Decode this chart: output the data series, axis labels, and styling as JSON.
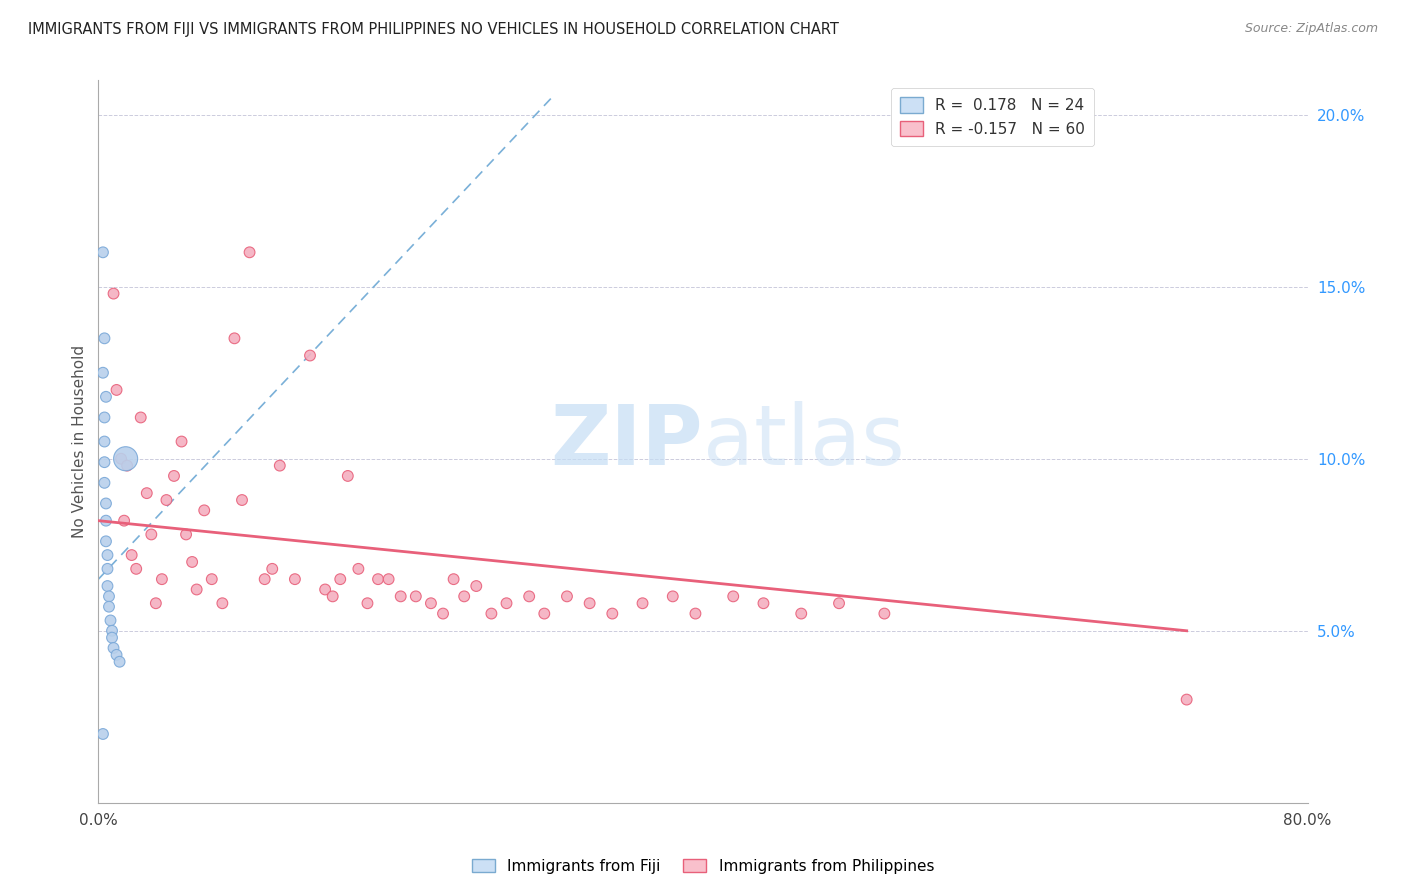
{
  "title": "IMMIGRANTS FROM FIJI VS IMMIGRANTS FROM PHILIPPINES NO VEHICLES IN HOUSEHOLD CORRELATION CHART",
  "source": "Source: ZipAtlas.com",
  "ylabel": "No Vehicles in Household",
  "xlim": [
    0.0,
    0.8
  ],
  "ylim": [
    0.0,
    0.21
  ],
  "fiji_R": 0.178,
  "fiji_N": 24,
  "philippines_R": -0.157,
  "philippines_N": 60,
  "fiji_color": "#b8d0eb",
  "philippines_color": "#f4b0c0",
  "fiji_line_color": "#7aa8d8",
  "philippines_line_color": "#e8607a",
  "fiji_scatter_x": [
    0.003,
    0.004,
    0.003,
    0.005,
    0.004,
    0.004,
    0.004,
    0.004,
    0.005,
    0.005,
    0.005,
    0.006,
    0.006,
    0.006,
    0.007,
    0.007,
    0.008,
    0.009,
    0.009,
    0.01,
    0.012,
    0.014,
    0.018,
    0.003
  ],
  "fiji_scatter_y": [
    0.16,
    0.135,
    0.125,
    0.118,
    0.112,
    0.105,
    0.099,
    0.093,
    0.087,
    0.082,
    0.076,
    0.072,
    0.068,
    0.063,
    0.06,
    0.057,
    0.053,
    0.05,
    0.048,
    0.045,
    0.043,
    0.041,
    0.1,
    0.02
  ],
  "fiji_scatter_size": [
    60,
    60,
    60,
    60,
    60,
    60,
    60,
    60,
    60,
    60,
    60,
    60,
    60,
    60,
    60,
    60,
    60,
    60,
    60,
    60,
    60,
    60,
    300,
    60
  ],
  "philippines_scatter_x": [
    0.01,
    0.012,
    0.015,
    0.017,
    0.019,
    0.022,
    0.025,
    0.028,
    0.032,
    0.035,
    0.038,
    0.042,
    0.045,
    0.05,
    0.055,
    0.058,
    0.062,
    0.065,
    0.07,
    0.075,
    0.082,
    0.09,
    0.095,
    0.1,
    0.11,
    0.115,
    0.12,
    0.13,
    0.14,
    0.15,
    0.155,
    0.16,
    0.165,
    0.172,
    0.178,
    0.185,
    0.192,
    0.2,
    0.21,
    0.22,
    0.228,
    0.235,
    0.242,
    0.25,
    0.26,
    0.27,
    0.285,
    0.295,
    0.31,
    0.325,
    0.34,
    0.36,
    0.38,
    0.395,
    0.42,
    0.44,
    0.465,
    0.49,
    0.52,
    0.72
  ],
  "philippines_scatter_y": [
    0.148,
    0.12,
    0.1,
    0.082,
    0.098,
    0.072,
    0.068,
    0.112,
    0.09,
    0.078,
    0.058,
    0.065,
    0.088,
    0.095,
    0.105,
    0.078,
    0.07,
    0.062,
    0.085,
    0.065,
    0.058,
    0.135,
    0.088,
    0.16,
    0.065,
    0.068,
    0.098,
    0.065,
    0.13,
    0.062,
    0.06,
    0.065,
    0.095,
    0.068,
    0.058,
    0.065,
    0.065,
    0.06,
    0.06,
    0.058,
    0.055,
    0.065,
    0.06,
    0.063,
    0.055,
    0.058,
    0.06,
    0.055,
    0.06,
    0.058,
    0.055,
    0.058,
    0.06,
    0.055,
    0.06,
    0.058,
    0.055,
    0.058,
    0.055,
    0.03
  ],
  "philippines_scatter_size": [
    60,
    60,
    60,
    60,
    60,
    60,
    60,
    60,
    60,
    60,
    60,
    60,
    60,
    60,
    60,
    60,
    60,
    60,
    60,
    60,
    60,
    60,
    60,
    60,
    60,
    60,
    60,
    60,
    60,
    60,
    60,
    60,
    60,
    60,
    60,
    60,
    60,
    60,
    60,
    60,
    60,
    60,
    60,
    60,
    60,
    60,
    60,
    60,
    60,
    60,
    60,
    60,
    60,
    60,
    60,
    60,
    60,
    60,
    60,
    60
  ],
  "fiji_line_x": [
    0.0,
    0.3
  ],
  "fiji_line_y_start": 0.065,
  "fiji_line_y_end": 0.205,
  "phil_line_x": [
    0.0,
    0.72
  ],
  "phil_line_y_start": 0.082,
  "phil_line_y_end": 0.05,
  "ytick_right_vals": [
    0.05,
    0.1,
    0.15,
    0.2
  ],
  "ytick_right_labels": [
    "5.0%",
    "10.0%",
    "15.0%",
    "20.0%"
  ]
}
